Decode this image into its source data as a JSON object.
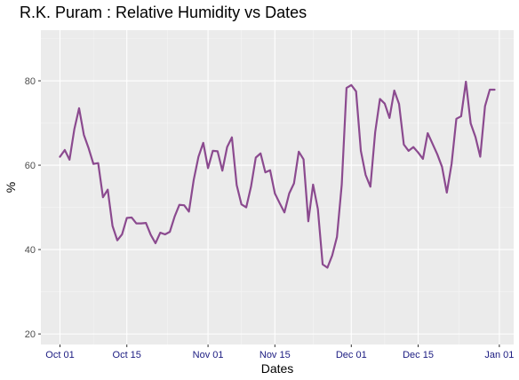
{
  "chart_data": {
    "type": "line",
    "title": "R.K. Puram : Relative Humidity vs Dates",
    "xlabel": "Dates",
    "ylabel": "%",
    "ylim": [
      17.5,
      92
    ],
    "yticks": [
      20,
      40,
      60,
      80
    ],
    "xticks": [
      {
        "label": "Oct 01",
        "day": 0
      },
      {
        "label": "Oct 15",
        "day": 14
      },
      {
        "label": "Nov 01",
        "day": 31
      },
      {
        "label": "Nov 15",
        "day": 45
      },
      {
        "label": "Dec 01",
        "day": 61
      },
      {
        "label": "Dec 15",
        "day": 75
      },
      {
        "label": "Jan 01",
        "day": 92
      }
    ],
    "xlim": [
      -4,
      95
    ],
    "grid": true,
    "series": [
      {
        "color": "#8b4a8f",
        "values": [
          62.0,
          63.6,
          61.3,
          68.5,
          73.5,
          67.2,
          64.0,
          60.3,
          60.5,
          52.4,
          54.2,
          45.6,
          42.2,
          43.6,
          47.5,
          47.6,
          46.2,
          46.2,
          46.3,
          43.5,
          41.5,
          44.0,
          43.6,
          44.2,
          47.8,
          50.6,
          50.5,
          49.0,
          56.5,
          62.0,
          65.3,
          59.3,
          63.4,
          63.3,
          58.7,
          64.3,
          66.6,
          55.3,
          50.7,
          50.0,
          54.9,
          61.8,
          62.8,
          58.3,
          58.8,
          53.3,
          51.0,
          48.8,
          53.3,
          55.7,
          63.2,
          61.4,
          46.7,
          55.4,
          49.6,
          36.5,
          35.7,
          38.6,
          43.0,
          55.4,
          78.3,
          79.0,
          77.5,
          63.4,
          57.7,
          54.9,
          67.8,
          75.7,
          74.6,
          71.2,
          77.7,
          74.5,
          64.9,
          63.4,
          64.3,
          63.0,
          61.5,
          67.6,
          65.1,
          62.6,
          59.6,
          53.5,
          60.3,
          71.0,
          71.6,
          79.8,
          69.9,
          66.7,
          62.0,
          74.0,
          77.9,
          77.9
        ]
      }
    ]
  }
}
